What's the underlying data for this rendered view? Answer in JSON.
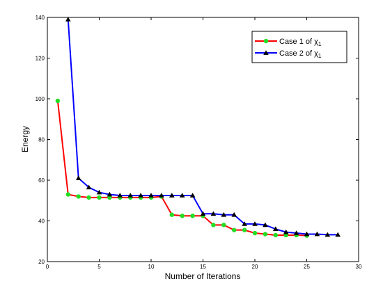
{
  "chart_data": {
    "type": "line",
    "xlabel": "Number of Iterations",
    "ylabel": "Energy",
    "xlim": [
      0,
      30
    ],
    "ylim": [
      20,
      140
    ],
    "xticks": [
      "0",
      "5",
      "10",
      "15",
      "20",
      "25",
      "30"
    ],
    "yticks": [
      "20",
      "40",
      "60",
      "80",
      "100",
      "120",
      "140"
    ],
    "grid": false,
    "legend_position": "top-right",
    "series": [
      {
        "name": "Case 1 of χ",
        "name_sub": "1",
        "line_color": "#ff0000",
        "marker": "circle",
        "marker_color": "#22dd22",
        "x": [
          1,
          2,
          3,
          4,
          5,
          6,
          7,
          8,
          9,
          10,
          11,
          12,
          13,
          14,
          15,
          16,
          17,
          18,
          19,
          20,
          21,
          22,
          23,
          24,
          25
        ],
        "values": [
          99,
          53,
          52,
          51.5,
          51.5,
          51.5,
          51.5,
          51.5,
          51.5,
          51.5,
          52,
          43,
          42.5,
          42.5,
          42.5,
          38,
          38,
          35.5,
          35.5,
          34,
          33.5,
          33,
          33,
          33,
          32.8
        ]
      },
      {
        "name": "Case 2 of χ",
        "name_sub": "1",
        "line_color": "#0000ff",
        "marker": "triangle",
        "marker_color": "#000000",
        "x": [
          2,
          3,
          4,
          5,
          6,
          7,
          8,
          9,
          10,
          11,
          12,
          13,
          14,
          15,
          16,
          17,
          18,
          19,
          20,
          21,
          22,
          23,
          24,
          25,
          26,
          27,
          28
        ],
        "values": [
          139,
          61,
          56.5,
          54,
          53,
          52.5,
          52.5,
          52.5,
          52.5,
          52.5,
          52.5,
          52.5,
          52.5,
          43.5,
          43.5,
          43,
          43,
          38.5,
          38.5,
          38,
          36,
          34.5,
          34,
          33.5,
          33.5,
          33.2,
          33.2
        ]
      }
    ]
  }
}
